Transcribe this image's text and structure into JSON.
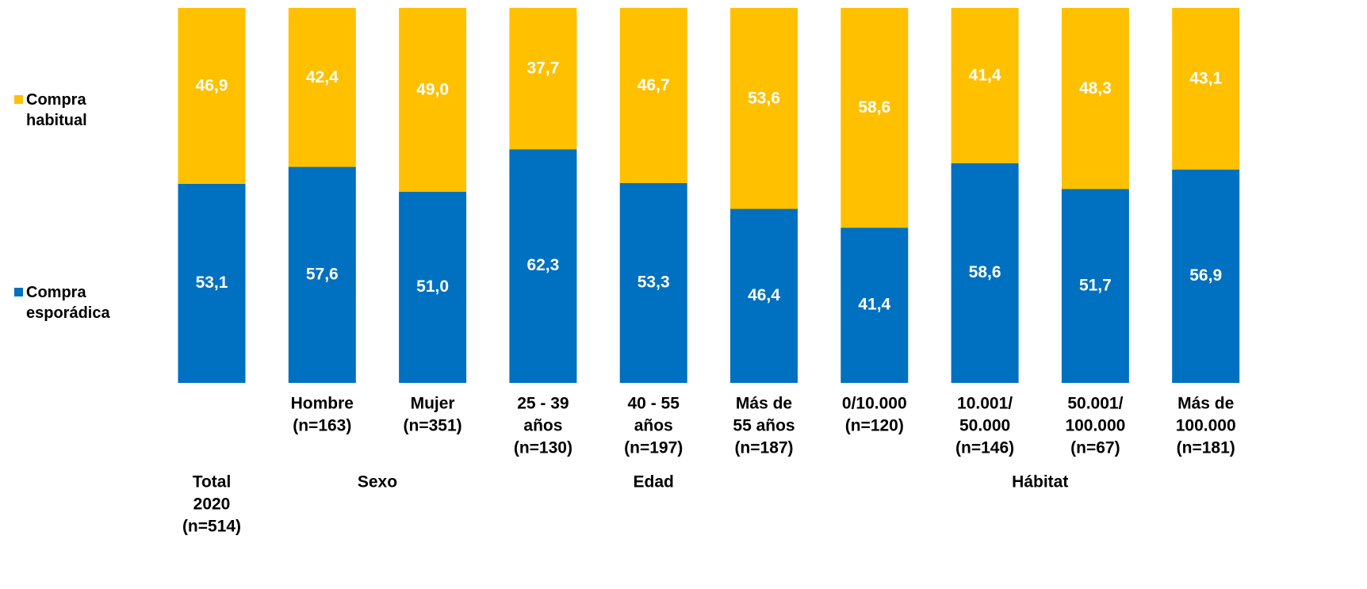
{
  "chart_data": {
    "type": "stacked_bar",
    "ylim": [
      0,
      100
    ],
    "groups": [
      {
        "label": [
          "Total",
          "2020",
          "(n=514)"
        ],
        "categories": [
          null
        ]
      },
      {
        "label": [
          "Sexo"
        ],
        "categories": [
          [
            "Hombre",
            "(n=163)"
          ],
          [
            "Mujer",
            "(n=351)"
          ]
        ]
      },
      {
        "label": [
          "Edad"
        ],
        "categories": [
          [
            "25 - 39",
            "años",
            "(n=130)"
          ],
          [
            "40 - 55",
            "años",
            "(n=197)"
          ],
          [
            "Más de",
            "55 años",
            "(n=187)"
          ]
        ]
      },
      {
        "label": [
          "Hábitat"
        ],
        "categories": [
          [
            "0/10.000",
            "(n=120)"
          ],
          [
            "10.001/",
            "50.000",
            "(n=146)"
          ],
          [
            "50.001/",
            "100.000",
            "(n=67)"
          ],
          [
            "Más de",
            "100.000",
            "(n=181)"
          ]
        ]
      }
    ],
    "series": [
      {
        "name": "Compra esporádica",
        "color": "#0070C0",
        "values": [
          53.1,
          57.6,
          51.0,
          62.3,
          53.3,
          46.4,
          41.4,
          58.6,
          51.7,
          56.9
        ],
        "value_labels": [
          "53,1",
          "57,6",
          "51,0",
          "62,3",
          "53,3",
          "46,4",
          "41,4",
          "58,6",
          "51,7",
          "56,9"
        ]
      },
      {
        "name": "Compra habitual",
        "color": "#FFC000",
        "values": [
          46.9,
          42.4,
          49.0,
          37.7,
          46.7,
          53.6,
          58.6,
          41.4,
          48.3,
          43.1
        ],
        "value_labels": [
          "46,9",
          "42,4",
          "49,0",
          "37,7",
          "46,7",
          "53,6",
          "58,6",
          "41,4",
          "48,3",
          "43,1"
        ]
      }
    ]
  }
}
